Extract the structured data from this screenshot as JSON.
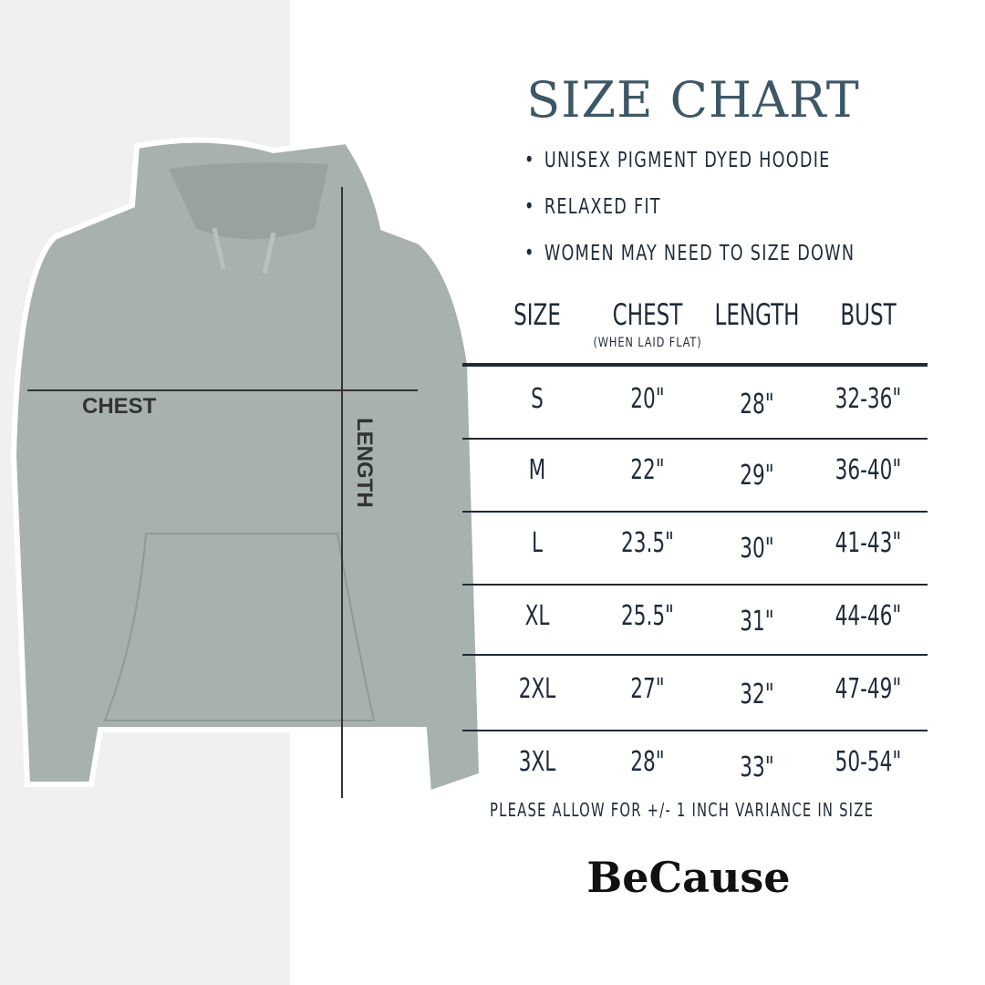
{
  "title": "SIZE CHART",
  "bullets": [
    "UNISEX PIGMENT DYED HOODIE",
    "RELAXED FIT",
    "WOMEN MAY NEED TO SIZE DOWN"
  ],
  "table": {
    "headers": [
      "SIZE",
      "CHEST",
      "LENGTH",
      "BUST"
    ],
    "chest_sub": "(WHEN LAID FLAT)",
    "rows": [
      [
        "S",
        "20\"",
        "28\"",
        "32-36\""
      ],
      [
        "M",
        "22\"",
        "29\"",
        "36-40\""
      ],
      [
        "L",
        "23.5\"",
        "30\"",
        "41-43\""
      ],
      [
        "XL",
        "25.5\"",
        "31\"",
        "44-46\""
      ],
      [
        "2XL",
        "27\"",
        "32\"",
        "47-49\""
      ],
      [
        "3XL",
        "28\"",
        "33\"",
        "50-54\""
      ]
    ]
  },
  "note": "PLEASE ALLOW FOR +/- 1 INCH VARIANCE IN SIZE",
  "brand": "BeCause",
  "diagram": {
    "chest_label": "CHEST",
    "length_label": "LENGTH"
  },
  "colors": {
    "title": "#3d5766",
    "text": "#1f2a3a",
    "hoodie": "#a7b1ae",
    "panel": "#f0f0f0"
  }
}
